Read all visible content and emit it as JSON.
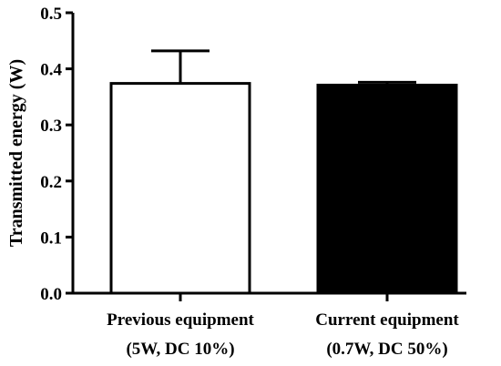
{
  "chart_data": {
    "type": "bar",
    "title": "",
    "xlabel": "",
    "ylabel": "Transmitted energy (W)",
    "ylim": [
      0,
      0.5
    ],
    "yticks": [
      0.0,
      0.1,
      0.2,
      0.3,
      0.4,
      0.5
    ],
    "ytick_labels": [
      "0.0",
      "0.1",
      "0.2",
      "0.3",
      "0.4",
      "0.5"
    ],
    "grid": false,
    "legend": "none",
    "categories": [
      {
        "line1": "Previous equipment",
        "line2": "(5W, DC 10%)"
      },
      {
        "line1": "Current equipment",
        "line2": "(0.7W, DC 50%)"
      }
    ],
    "values": [
      0.374,
      0.371
    ],
    "error_upper": [
      0.058,
      0.005
    ],
    "bar_fills": [
      "#ffffff",
      "#000000"
    ],
    "bar_stroke": "#000000"
  }
}
